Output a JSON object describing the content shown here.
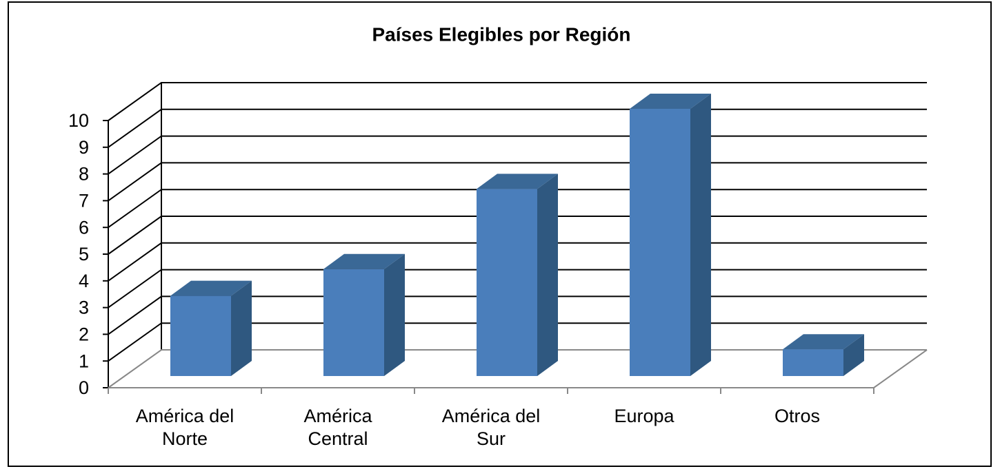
{
  "chart_data": {
    "type": "bar3d",
    "title": "Países Elegibles por Región",
    "categories": [
      "América del Norte",
      "América Central",
      "América del Sur",
      "Europa",
      "Otros"
    ],
    "values": [
      3,
      4,
      7,
      10,
      1
    ],
    "color": "#4a7ebb",
    "ylim": [
      0,
      10
    ],
    "yticks": [
      0,
      1,
      2,
      3,
      4,
      5,
      6,
      7,
      8,
      9,
      10
    ],
    "grid": true
  }
}
